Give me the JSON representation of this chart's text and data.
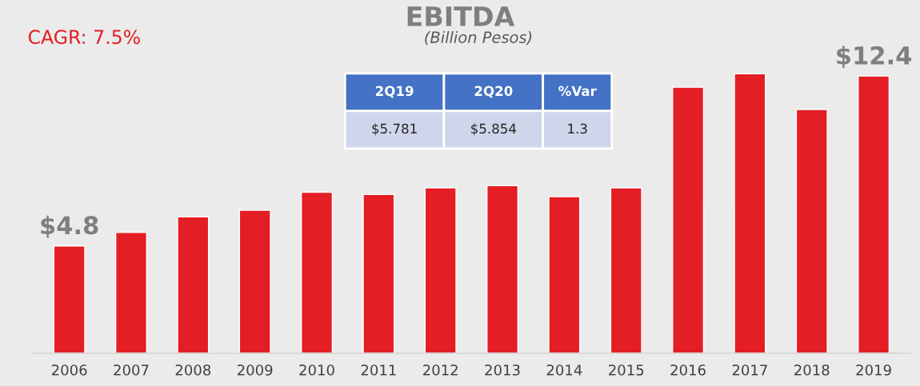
{
  "chart_data": [
    {
      "type": "bar",
      "title": "EBITDA",
      "subtitle": "(Billion Pesos)",
      "annotations": [
        "CAGR: 7.5%"
      ],
      "categories": [
        "2006",
        "2007",
        "2008",
        "2009",
        "2010",
        "2011",
        "2012",
        "2013",
        "2014",
        "2015",
        "2016",
        "2017",
        "2018",
        "2019"
      ],
      "values": [
        4.8,
        5.4,
        6.1,
        6.4,
        7.2,
        7.1,
        7.4,
        7.5,
        7.0,
        7.4,
        11.9,
        12.5,
        10.9,
        12.4
      ],
      "value_labels": [
        "$4.8",
        null,
        null,
        null,
        null,
        null,
        null,
        null,
        null,
        null,
        null,
        null,
        null,
        "$12.4"
      ],
      "color": "#e31e24",
      "grid": false,
      "legend": false
    },
    {
      "type": "other",
      "annotations": [
        "2Q19",
        "2Q20",
        "%Var",
        "$5.781",
        "$5.854",
        "1.3"
      ]
    }
  ]
}
